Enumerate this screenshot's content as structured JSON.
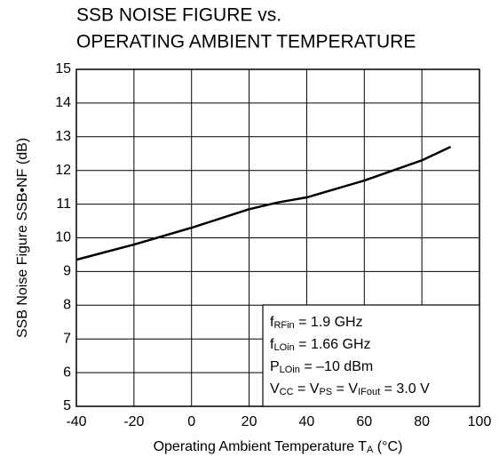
{
  "chart_data": {
    "type": "line",
    "title": [
      "SSB NOISE FIGURE vs.",
      "OPERATING AMBIENT TEMPERATURE"
    ],
    "xlabel": [
      "Operating Ambient Temperature  T",
      "A",
      " (°C)"
    ],
    "ylabel": "SSB Noise Figure  SSB•NF (dB)",
    "x": [
      -40,
      -20,
      0,
      20,
      30,
      40,
      60,
      80,
      90
    ],
    "series": [
      {
        "color": "#000000",
        "values": [
          9.35,
          9.8,
          10.3,
          10.85,
          11.05,
          11.2,
          11.7,
          12.3,
          12.7
        ]
      }
    ],
    "xlim": [
      -40,
      100
    ],
    "xticks": [
      -40,
      -20,
      0,
      20,
      40,
      60,
      80,
      100
    ],
    "ylim": [
      5,
      15
    ],
    "yticks": [
      5,
      6,
      7,
      8,
      9,
      10,
      11,
      12,
      13,
      14,
      15
    ],
    "grid": true,
    "annotation": [
      [
        "f",
        "RFin",
        " = 1.9 GHz"
      ],
      [
        "f",
        "LOin",
        " = 1.66 GHz"
      ],
      [
        "P",
        "LOin",
        " = –10 dBm"
      ],
      [
        "V",
        "CC",
        " = V",
        "PS",
        " = V",
        "IFout",
        " = 3.0 V"
      ]
    ]
  }
}
